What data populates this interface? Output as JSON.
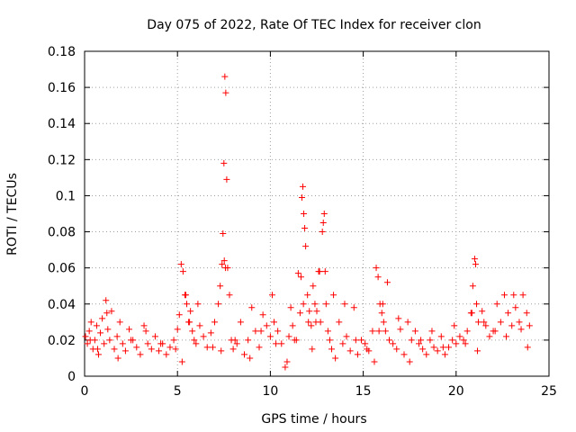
{
  "chart_data": {
    "type": "scatter",
    "title": "Day 075 of 2022, Rate Of TEC Index for receiver clon",
    "xlabel": "GPS time / hours",
    "ylabel": "ROTI / TECUs",
    "xlim": [
      0,
      25
    ],
    "ylim": [
      0,
      0.18
    ],
    "xticks": [
      "0",
      "5",
      "10",
      "15",
      "20",
      "25"
    ],
    "yticks": [
      "0",
      "0.02",
      "0.04",
      "0.06",
      "0.08",
      "0.1",
      "0.12",
      "0.14",
      "0.16",
      "0.18"
    ],
    "grid": true,
    "marker": "+",
    "color": "#ff0000",
    "series": [
      {
        "name": "ROTI",
        "x": [
          0.05,
          0.15,
          0.25,
          0.35,
          0.45,
          0.55,
          0.65,
          0.75,
          0.85,
          0.95,
          1.05,
          1.15,
          1.25,
          1.35,
          1.45,
          1.6,
          1.75,
          1.9,
          2.05,
          2.2,
          2.4,
          2.6,
          2.8,
          3.0,
          3.2,
          3.4,
          3.6,
          3.8,
          4.0,
          4.2,
          4.4,
          4.6,
          4.8,
          5.0,
          5.1,
          5.2,
          5.3,
          5.4,
          5.5,
          5.6,
          5.7,
          5.8,
          5.9,
          6.0,
          6.2,
          6.4,
          6.6,
          6.8,
          7.0,
          7.2,
          7.3,
          7.4,
          7.45,
          7.5,
          7.55,
          7.6,
          7.65,
          7.7,
          7.8,
          7.9,
          8.0,
          8.2,
          8.4,
          8.6,
          8.8,
          9.0,
          9.2,
          9.4,
          9.6,
          9.8,
          10.0,
          10.1,
          10.2,
          10.4,
          10.6,
          10.8,
          11.0,
          11.1,
          11.2,
          11.4,
          11.5,
          11.6,
          11.7,
          11.75,
          11.8,
          11.85,
          11.9,
          12.0,
          12.1,
          12.2,
          12.3,
          12.4,
          12.5,
          12.6,
          12.7,
          12.8,
          12.85,
          12.9,
          12.95,
          13.0,
          13.1,
          13.2,
          13.3,
          13.5,
          13.7,
          13.9,
          14.1,
          14.3,
          14.5,
          14.7,
          14.9,
          15.1,
          15.3,
          15.5,
          15.7,
          15.8,
          15.9,
          16.0,
          16.1,
          16.2,
          16.4,
          16.6,
          16.8,
          17.0,
          17.2,
          17.4,
          17.6,
          17.8,
          18.0,
          18.2,
          18.4,
          18.6,
          18.8,
          19.0,
          19.2,
          19.4,
          19.6,
          19.8,
          20.0,
          20.2,
          20.4,
          20.6,
          20.8,
          20.9,
          21.0,
          21.05,
          21.1,
          21.2,
          21.4,
          21.6,
          21.8,
          22.0,
          22.2,
          22.4,
          22.6,
          22.8,
          23.0,
          23.2,
          23.4,
          23.6,
          23.8,
          23.95,
          0.3,
          0.7,
          1.2,
          1.8,
          2.5,
          3.3,
          4.1,
          4.9,
          5.25,
          5.45,
          5.65,
          6.1,
          6.9,
          7.35,
          7.52,
          7.58,
          8.1,
          8.9,
          9.5,
          10.3,
          10.9,
          11.3,
          11.65,
          11.78,
          12.05,
          12.25,
          12.45,
          12.65,
          13.4,
          14.0,
          14.6,
          15.2,
          15.6,
          15.85,
          16.05,
          16.3,
          16.9,
          17.5,
          18.1,
          18.7,
          19.3,
          19.9,
          20.5,
          20.85,
          21.15,
          21.5,
          22.1,
          22.7,
          23.1,
          23.5,
          23.85
        ],
        "y": [
          0.022,
          0.018,
          0.025,
          0.03,
          0.015,
          0.02,
          0.028,
          0.012,
          0.024,
          0.032,
          0.018,
          0.042,
          0.026,
          0.02,
          0.036,
          0.015,
          0.022,
          0.03,
          0.018,
          0.014,
          0.026,
          0.02,
          0.016,
          0.012,
          0.028,
          0.018,
          0.015,
          0.022,
          0.014,
          0.018,
          0.012,
          0.016,
          0.02,
          0.026,
          0.034,
          0.062,
          0.058,
          0.045,
          0.04,
          0.03,
          0.036,
          0.025,
          0.02,
          0.018,
          0.028,
          0.022,
          0.016,
          0.024,
          0.03,
          0.04,
          0.05,
          0.062,
          0.079,
          0.118,
          0.166,
          0.157,
          0.109,
          0.06,
          0.045,
          0.02,
          0.015,
          0.018,
          0.03,
          0.012,
          0.02,
          0.038,
          0.025,
          0.016,
          0.034,
          0.028,
          0.022,
          0.045,
          0.03,
          0.025,
          0.018,
          0.005,
          0.022,
          0.038,
          0.028,
          0.02,
          0.057,
          0.035,
          0.099,
          0.105,
          0.09,
          0.082,
          0.072,
          0.045,
          0.036,
          0.028,
          0.05,
          0.04,
          0.036,
          0.058,
          0.03,
          0.08,
          0.085,
          0.09,
          0.058,
          0.04,
          0.025,
          0.02,
          0.015,
          0.01,
          0.03,
          0.018,
          0.022,
          0.014,
          0.038,
          0.012,
          0.02,
          0.018,
          0.014,
          0.025,
          0.06,
          0.055,
          0.04,
          0.035,
          0.03,
          0.025,
          0.02,
          0.018,
          0.015,
          0.026,
          0.012,
          0.03,
          0.02,
          0.025,
          0.018,
          0.015,
          0.012,
          0.02,
          0.016,
          0.014,
          0.022,
          0.012,
          0.016,
          0.02,
          0.018,
          0.022,
          0.02,
          0.025,
          0.035,
          0.05,
          0.065,
          0.062,
          0.04,
          0.03,
          0.036,
          0.028,
          0.022,
          0.025,
          0.04,
          0.03,
          0.045,
          0.035,
          0.028,
          0.038,
          0.03,
          0.045,
          0.035,
          0.028,
          0.02,
          0.015,
          0.035,
          0.01,
          0.02,
          0.025,
          0.018,
          0.015,
          0.008,
          0.045,
          0.03,
          0.04,
          0.016,
          0.014,
          0.064,
          0.06,
          0.02,
          0.01,
          0.025,
          0.018,
          0.008,
          0.02,
          0.055,
          0.04,
          0.03,
          0.015,
          0.03,
          0.058,
          0.045,
          0.04,
          0.02,
          0.015,
          0.008,
          0.025,
          0.04,
          0.052,
          0.032,
          0.008,
          0.02,
          0.025,
          0.016,
          0.028,
          0.018,
          0.035,
          0.014,
          0.03,
          0.025,
          0.022,
          0.045,
          0.026,
          0.016
        ]
      }
    ]
  }
}
